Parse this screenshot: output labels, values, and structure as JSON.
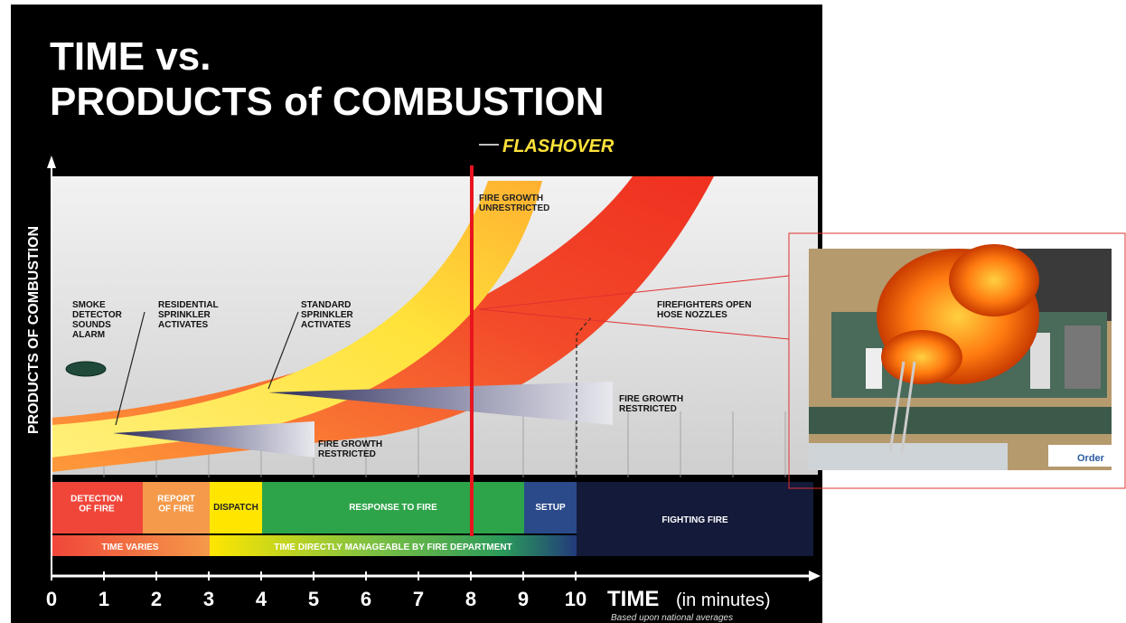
{
  "title": [
    "TIME vs.",
    "PRODUCTS of COMBUSTION"
  ],
  "flashover": "FLASHOVER",
  "y_axis_label": "PRODUCTS OF COMBUSTION",
  "annotations": [
    [
      "SMOKE",
      "DETECTOR",
      "SOUNDS",
      "ALARM"
    ],
    [
      "RESIDENTIAL",
      "SPRINKLER",
      "ACTIVATES"
    ],
    [
      "STANDARD",
      "SPRINKLER",
      "ACTIVATES"
    ],
    [
      "FIRE GROWTH",
      "UNRESTRICTED"
    ],
    [
      "FIREFIGHTERS OPEN",
      "HOSE NOZZLES"
    ],
    [
      "FIRE GROWTH",
      "RESTRICTED"
    ],
    [
      "FIRE GROWTH",
      "RESTRICTED"
    ]
  ],
  "phases": [
    [
      "DETECTION",
      "OF FIRE"
    ],
    [
      "REPORT",
      "OF FIRE"
    ],
    [
      "DISPATCH"
    ],
    [
      "RESPONSE TO FIRE"
    ],
    [
      "SETUP"
    ],
    [
      "FIGHTING FIRE"
    ]
  ],
  "time_rows": [
    "TIME VARIES",
    "TIME DIRECTLY MANAGEABLE BY FIRE DEPARTMENT"
  ],
  "axis": {
    "ticks": [
      "0",
      "1",
      "2",
      "3",
      "4",
      "5",
      "6",
      "7",
      "8",
      "9",
      "10"
    ],
    "label": "TIME",
    "unit": "(in minutes)",
    "note": "Based upon national averages"
  },
  "photo_sign": "Order"
}
